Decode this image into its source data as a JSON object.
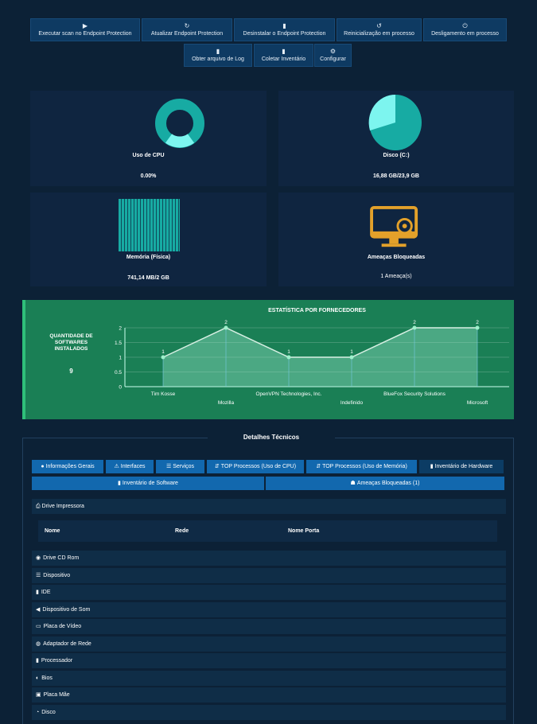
{
  "toolbar": {
    "row1": [
      {
        "icon": "play-icon",
        "glyph": "▶",
        "label": "Executar scan no Endpoint Protection"
      },
      {
        "icon": "refresh-icon",
        "glyph": "↻",
        "label": "Atualizar Endpoint Protection"
      },
      {
        "icon": "trash-icon",
        "glyph": "▮",
        "label": "Desinstalar o Endpoint Protection"
      },
      {
        "icon": "restart-icon",
        "glyph": "↺",
        "label": "Reinicialização em processo"
      },
      {
        "icon": "power-icon",
        "glyph": "⏻",
        "label": "Desligamento em processo"
      }
    ],
    "row2": [
      {
        "icon": "file-icon",
        "glyph": "▮",
        "label": "Obter arquivo de Log"
      },
      {
        "icon": "file-icon",
        "glyph": "▮",
        "label": "Coletar Inventário"
      },
      {
        "icon": "cogs-icon",
        "glyph": "⚙",
        "label": "Configurar"
      }
    ]
  },
  "cards": {
    "cpu": {
      "title": "Uso de CPU",
      "value": "0.00%"
    },
    "disk": {
      "title": "Disco (C:)",
      "value": "16,88 GB/23,9 GB"
    },
    "memory": {
      "title": "Memória (Física)",
      "value": "741,14 MB/2 GB"
    },
    "threats": {
      "title": "Ameaças Bloqueadas",
      "value": "1 Ameaça(s)"
    }
  },
  "colors": {
    "teal": "#17aba3",
    "teal_light": "#7df5ef",
    "orange": "#e3a12a",
    "green_panel": "#1a7f55"
  },
  "vendors": {
    "label": "QUANTIDADE DE SOFTWARES INSTALADOS",
    "count": "9"
  },
  "chart_data": {
    "type": "area",
    "title": "ESTATÍSTICA POR FORNECEDORES",
    "categories": [
      "Tim Kosse",
      "Mozilla",
      "OpenVPN Technologies, Inc.",
      "Indefinido",
      "BlueFox Security Solutions",
      "Microsoft"
    ],
    "values": [
      1,
      2,
      1,
      1,
      2,
      2
    ],
    "ylim": [
      0,
      2
    ],
    "yticks": [
      "0",
      "0.5",
      "1",
      "1.5",
      "2"
    ],
    "grid": true
  },
  "details": {
    "title": "Detalhes Técnicos",
    "tabs": [
      {
        "icon": "info-icon",
        "glyph": "●",
        "label": "Informações Gerais"
      },
      {
        "icon": "sitemap-icon",
        "glyph": "⚠",
        "label": "Interfaces"
      },
      {
        "icon": "list-icon",
        "glyph": "☰",
        "label": "Serviços"
      },
      {
        "icon": "sort-icon",
        "glyph": "⇵",
        "label": "TOP Processos (Uso de CPU)"
      },
      {
        "icon": "sort-icon",
        "glyph": "⇵",
        "label": "TOP Processos (Uso de Memória)"
      },
      {
        "icon": "file-icon",
        "glyph": "▮",
        "label": "Inventário de Hardware"
      }
    ],
    "tabs2": [
      {
        "icon": "file-icon",
        "glyph": "▮",
        "label": "Inventário de Software"
      },
      {
        "icon": "shield-icon",
        "glyph": "☗",
        "label": "Ameaças Bloqueadas (1)"
      }
    ],
    "printer": {
      "label": "Drive Impressora",
      "columns": [
        "Nome",
        "Rede",
        "Nome Porta"
      ]
    },
    "sections": [
      {
        "icon": "disc-icon",
        "glyph": "◉",
        "label": "Drive CD Rom"
      },
      {
        "icon": "list-icon",
        "glyph": "☰",
        "label": "Dispositivo"
      },
      {
        "icon": "hdd-icon",
        "glyph": "▮",
        "label": "IDE"
      },
      {
        "icon": "speaker-icon",
        "glyph": "◀",
        "label": "Dispositivo de Som"
      },
      {
        "icon": "monitor-icon",
        "glyph": "▭",
        "label": "Placa de Vídeo"
      },
      {
        "icon": "network-icon",
        "glyph": "◍",
        "label": "Adaptador de Rede"
      },
      {
        "icon": "cpu-icon",
        "glyph": "▮",
        "label": "Processador"
      },
      {
        "icon": "bios-icon",
        "glyph": "◐",
        "label": "Bios"
      },
      {
        "icon": "motherboard-icon",
        "glyph": "▣",
        "label": "Placa Mãe"
      },
      {
        "icon": "disk-icon",
        "glyph": "◔",
        "label": "Disco"
      }
    ]
  }
}
